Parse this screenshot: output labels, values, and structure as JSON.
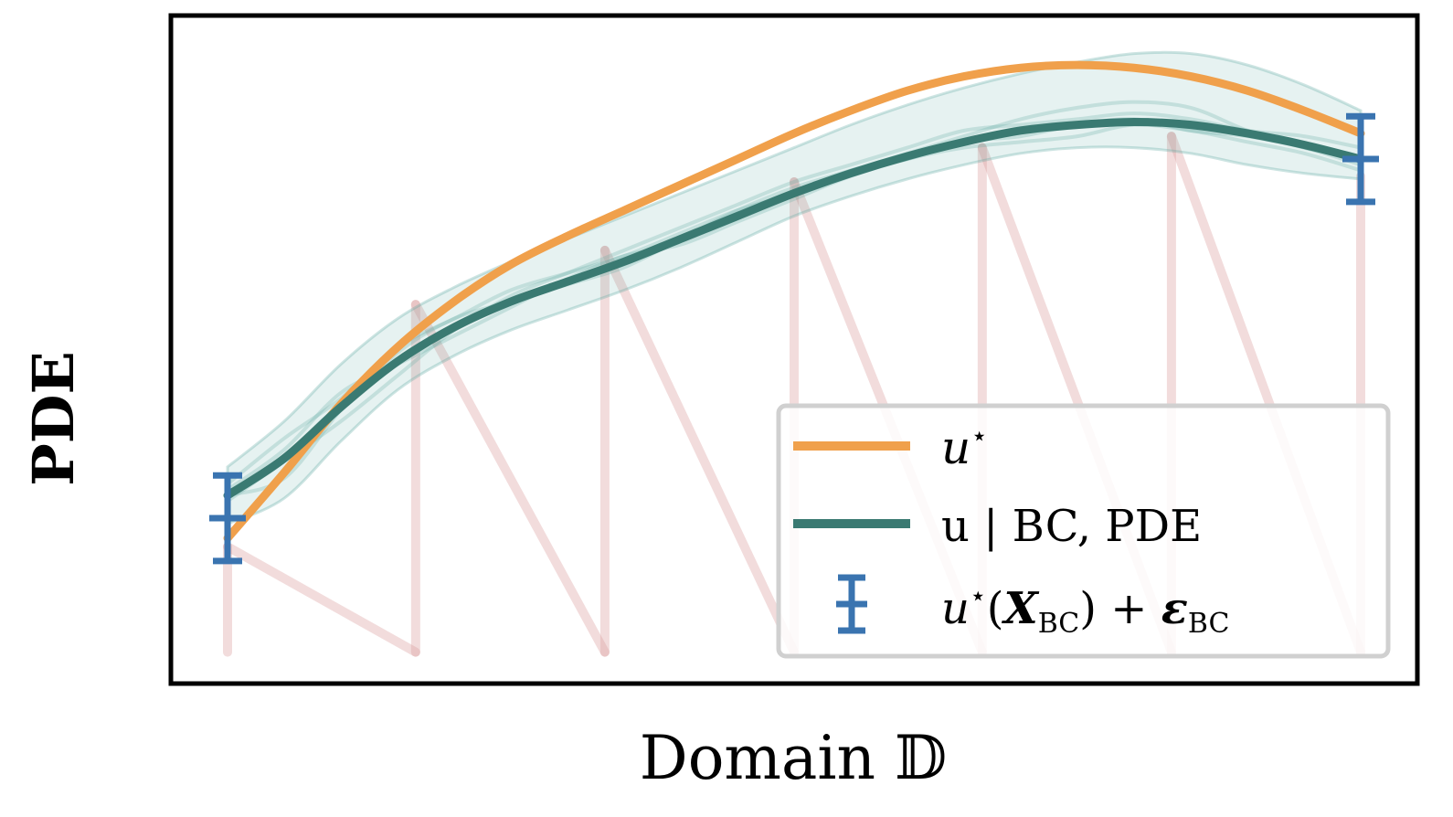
{
  "chart_data": {
    "type": "line",
    "xlabel": "Domain 𝔻",
    "ylabel": "PDE",
    "xlim": [
      0,
      1
    ],
    "ylim": [
      0,
      1
    ],
    "grid": false,
    "legend_position": "lower-right",
    "colors": {
      "u_star": "#f0a04b",
      "u_bc_pde": "#3a7a72",
      "band": "#5aa6a0",
      "obs": "#3a74b0",
      "zigzag": "#d99a9a",
      "frame": "#000000"
    },
    "x": [
      0.0,
      0.05,
      0.1,
      0.15,
      0.2,
      0.25,
      0.3,
      0.35,
      0.4,
      0.45,
      0.5,
      0.55,
      0.6,
      0.65,
      0.7,
      0.75,
      0.8,
      0.85,
      0.9,
      0.95,
      1.0
    ],
    "series": [
      {
        "name": "u★",
        "values": [
          0.215,
          0.33,
          0.45,
          0.55,
          0.63,
          0.695,
          0.745,
          0.79,
          0.835,
          0.88,
          0.925,
          0.965,
          1.0,
          1.025,
          1.04,
          1.045,
          1.04,
          1.025,
          1.0,
          0.965,
          0.925
        ]
      },
      {
        "name": "u | BC, PDE",
        "values": [
          0.29,
          0.355,
          0.445,
          0.525,
          0.585,
          0.63,
          0.665,
          0.7,
          0.74,
          0.78,
          0.82,
          0.855,
          0.885,
          0.91,
          0.93,
          0.94,
          0.945,
          0.94,
          0.925,
          0.905,
          0.88
        ]
      }
    ],
    "band": {
      "lower": [
        0.24,
        0.285,
        0.385,
        0.475,
        0.535,
        0.58,
        0.615,
        0.65,
        0.69,
        0.735,
        0.78,
        0.815,
        0.845,
        0.87,
        0.89,
        0.9,
        0.9,
        0.89,
        0.87,
        0.855,
        0.845
      ],
      "upper": [
        0.34,
        0.42,
        0.52,
        0.6,
        0.655,
        0.7,
        0.74,
        0.78,
        0.82,
        0.86,
        0.9,
        0.94,
        0.975,
        1.005,
        1.03,
        1.05,
        1.065,
        1.065,
        1.045,
        1.01,
        0.965
      ]
    },
    "samples": [
      [
        0.29,
        0.32,
        0.44,
        0.54,
        0.6,
        0.63,
        0.66,
        0.69,
        0.74,
        0.79,
        0.83,
        0.86,
        0.89,
        0.92,
        0.95,
        0.97,
        0.98,
        0.97,
        0.93,
        0.9,
        0.88
      ],
      [
        0.3,
        0.37,
        0.47,
        0.52,
        0.57,
        0.62,
        0.67,
        0.71,
        0.73,
        0.77,
        0.81,
        0.85,
        0.88,
        0.9,
        0.91,
        0.92,
        0.94,
        0.93,
        0.91,
        0.89,
        0.86
      ],
      [
        0.28,
        0.35,
        0.42,
        0.5,
        0.58,
        0.64,
        0.68,
        0.72,
        0.76,
        0.8,
        0.84,
        0.87,
        0.9,
        0.93,
        0.94,
        0.95,
        0.96,
        0.95,
        0.93,
        0.92,
        0.9
      ],
      [
        0.31,
        0.39,
        0.46,
        0.55,
        0.6,
        0.65,
        0.68,
        0.71,
        0.75,
        0.79,
        0.82,
        0.86,
        0.88,
        0.91,
        0.92,
        0.94,
        0.95,
        0.93,
        0.92,
        0.9,
        0.87
      ]
    ],
    "observations": [
      {
        "name": "u★(X_BC) + ε_BC",
        "x": 0.0,
        "y": 0.25,
        "err": 0.075
      },
      {
        "x": 1.0,
        "y": 0.88,
        "err": 0.075
      }
    ],
    "zigzag": {
      "x": [
        0.0,
        0.0,
        0.166,
        0.166,
        0.333,
        0.333,
        0.5,
        0.5,
        0.666,
        0.666,
        0.833,
        0.833,
        1.0,
        1.0
      ],
      "y": [
        0.015,
        0.2,
        0.015,
        0.625,
        0.015,
        0.72,
        0.015,
        0.84,
        0.015,
        0.9,
        0.015,
        0.92,
        0.015,
        0.85
      ]
    },
    "legend": [
      {
        "label": "u",
        "sup": "⋆",
        "rest": ""
      },
      {
        "label": "u | BC, PDE"
      },
      {
        "label": "u",
        "sup": "⋆",
        "paren": "(",
        "x": "X",
        "xsub": "BC",
        "close": ") + ",
        "eps": "ε",
        "epssub": "BC"
      }
    ]
  }
}
